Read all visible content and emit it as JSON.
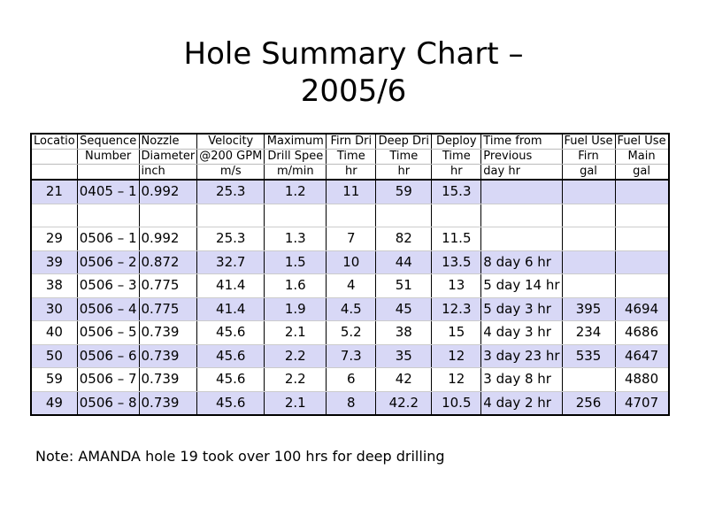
{
  "title": [
    "Hole Summary Chart –",
    "2005/6"
  ],
  "table": {
    "header_rows": [
      [
        "Locatio",
        "Sequence",
        "Nozzle",
        "Velocity",
        "Maximum",
        "Firn Dri",
        "Deep Dri",
        "Deploy",
        "Time from",
        "Fuel Use",
        "Fuel Use"
      ],
      [
        null,
        "Number",
        "Diameter",
        "@200 GPM",
        "Drill Spee",
        "Time",
        "Time",
        "Time",
        "Previous",
        "Firn",
        "Main"
      ],
      [
        null,
        null,
        "inch",
        "m/s",
        "m/min",
        "hr",
        "hr",
        "hr",
        "day hr",
        "gal",
        "gal"
      ]
    ],
    "rows": [
      [
        "21",
        "0405 – 1",
        "0.992",
        "25.3",
        "1.2",
        "11",
        "59",
        "15.3",
        null,
        null,
        null
      ],
      [
        null,
        null,
        null,
        null,
        null,
        null,
        null,
        null,
        null,
        null,
        null
      ],
      [
        "29",
        "0506 – 1",
        "0.992",
        "25.3",
        "1.3",
        "7",
        "82",
        "11.5",
        null,
        null,
        null
      ],
      [
        "39",
        "0506 – 2",
        "0.872",
        "32.7",
        "1.5",
        "10",
        "44",
        "13.5",
        "8 day 6 hr",
        null,
        null
      ],
      [
        "38",
        "0506 – 3",
        "0.775",
        "41.4",
        "1.6",
        "4",
        "51",
        "13",
        "5 day 14 hr",
        null,
        null
      ],
      [
        "30",
        "0506 – 4",
        "0.775",
        "41.4",
        "1.9",
        "4.5",
        "45",
        "12.3",
        "5 day 3 hr",
        "395",
        "4694"
      ],
      [
        "40",
        "0506 – 5",
        "0.739",
        "45.6",
        "2.1",
        "5.2",
        "38",
        "15",
        "4 day 3 hr",
        "234",
        "4686"
      ],
      [
        "50",
        "0506 – 6",
        "0.739",
        "45.6",
        "2.2",
        "7.3",
        "35",
        "12",
        "3 day 23 hr",
        "535",
        "4647"
      ],
      [
        "59",
        "0506 – 7",
        "0.739",
        "45.6",
        "2.2",
        "6",
        "42",
        "12",
        "3 day 8 hr",
        null,
        "4880"
      ],
      [
        "49",
        "0506 – 8",
        "0.739",
        "45.6",
        "2.1",
        "8",
        "42.2",
        "10.5",
        "4 day 2 hr",
        "256",
        "4707"
      ]
    ]
  },
  "note": "Note: AMANDA hole 19 took over 100 hrs for deep drilling"
}
